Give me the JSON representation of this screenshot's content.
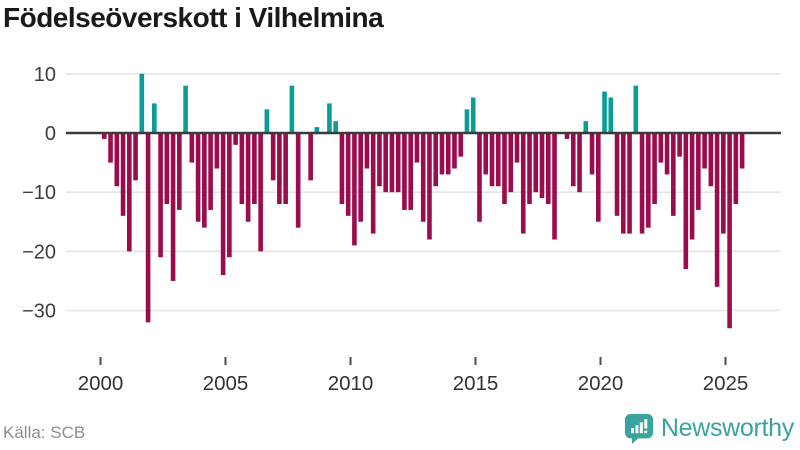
{
  "title": "Födelseöverskott i Vilhelmina",
  "source": {
    "text": "Källa: SCB"
  },
  "brand": {
    "name": "Newsworthy",
    "color": "#3aa39d"
  },
  "chart_data": {
    "type": "bar",
    "title": "Födelseöverskott i Vilhelmina",
    "period": "quarterly",
    "start": "2000Q1",
    "end": "2025Q3",
    "values": [
      -1,
      -5,
      -9,
      -14,
      -20,
      -8,
      10,
      -32,
      5,
      -21,
      -12,
      -25,
      -13,
      8,
      -5,
      -15,
      -16,
      -13,
      -6,
      -24,
      -21,
      -2,
      -12,
      -15,
      -12,
      -20,
      4,
      -8,
      -12,
      -12,
      8,
      -16,
      0,
      -8,
      1,
      0,
      5,
      2,
      -12,
      -14,
      -19,
      -15,
      -6,
      -17,
      -9,
      -10,
      -10,
      -10,
      -13,
      -13,
      -5,
      -15,
      -18,
      -9,
      -7,
      -7,
      -6,
      -4,
      4,
      6,
      -15,
      -7,
      -9,
      -9,
      -12,
      -10,
      -5,
      -17,
      -12,
      -10,
      -11,
      -12,
      -18,
      0,
      -1,
      -9,
      -10,
      2,
      -7,
      -15,
      7,
      6,
      -14,
      -17,
      -17,
      8,
      -17,
      -16,
      -12,
      -5,
      -7,
      -14,
      -4,
      -23,
      -18,
      -13,
      -6,
      -9,
      -26,
      -17,
      -33,
      -12,
      -6
    ],
    "xticks": [
      2000,
      2005,
      2010,
      2015,
      2020,
      2025
    ],
    "xtick_labels": [
      "2000",
      "2005",
      "2010",
      "2015",
      "2020",
      "2025"
    ],
    "yticks": [
      10,
      0,
      -10,
      -20,
      -30
    ],
    "ytick_labels": [
      "10",
      "0",
      "−10",
      "−20",
      "−30"
    ],
    "ylim": [
      -35,
      12
    ],
    "grid": true,
    "legend": "none",
    "positive_color": "#0a9c95",
    "negative_color": "#9b0c4c",
    "zero_line_color": "#3a3a3a",
    "grid_color": "#e4e4e4",
    "tick_label_color": "#3d3d3d"
  }
}
